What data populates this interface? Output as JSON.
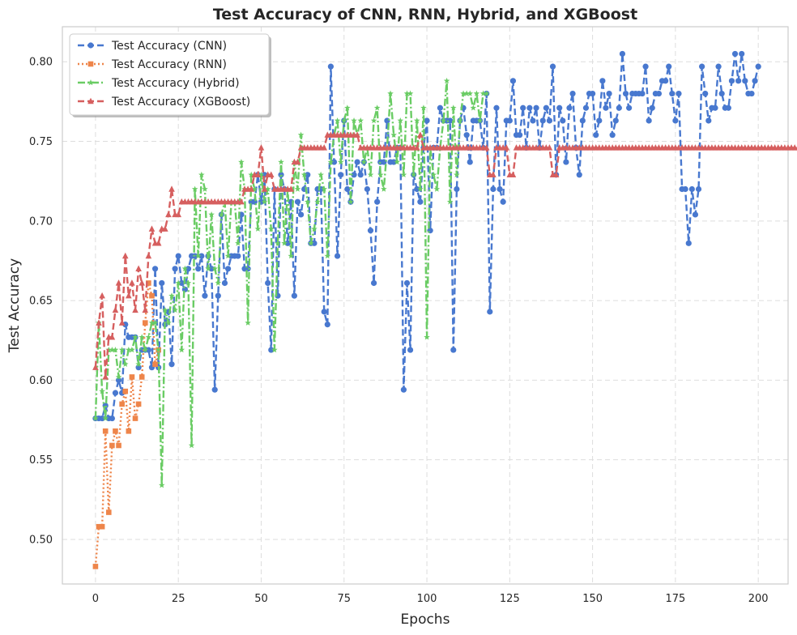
{
  "chart_data": {
    "type": "line",
    "title": "Test Accuracy of CNN, RNN, Hybrid, and XGBoost",
    "xlabel": "Epochs",
    "ylabel": "Test Accuracy",
    "xlim": [
      -10,
      209
    ],
    "ylim": [
      0.472,
      0.822
    ],
    "xticks": [
      0,
      25,
      50,
      75,
      100,
      125,
      150,
      175,
      200
    ],
    "xtick_labels": [
      "0",
      "25",
      "50",
      "75",
      "100",
      "125",
      "150",
      "175",
      "200"
    ],
    "yticks": [
      0.5,
      0.55,
      0.6,
      0.65,
      0.7,
      0.75,
      0.8
    ],
    "ytick_labels": [
      "0.50",
      "0.55",
      "0.60",
      "0.65",
      "0.70",
      "0.75",
      "0.80"
    ],
    "grid": true,
    "legend_position": "top-left",
    "series": [
      {
        "name": "Test Accuracy (CNN)",
        "color": "#4878cf",
        "line_style": "dashed",
        "marker": "circle",
        "x_start": 0,
        "values": [
          0.576,
          0.576,
          0.576,
          0.584,
          0.576,
          0.576,
          0.592,
          0.6,
          0.592,
          0.635,
          0.627,
          0.627,
          0.627,
          0.608,
          0.619,
          0.619,
          0.619,
          0.608,
          0.67,
          0.608,
          0.661,
          0.635,
          0.643,
          0.61,
          0.67,
          0.678,
          0.661,
          0.657,
          0.67,
          0.678,
          0.678,
          0.67,
          0.678,
          0.653,
          0.678,
          0.67,
          0.594,
          0.653,
          0.704,
          0.661,
          0.67,
          0.678,
          0.678,
          0.678,
          0.704,
          0.67,
          0.67,
          0.712,
          0.712,
          0.729,
          0.712,
          0.729,
          0.661,
          0.619,
          0.72,
          0.653,
          0.729,
          0.72,
          0.686,
          0.712,
          0.653,
          0.712,
          0.704,
          0.72,
          0.729,
          0.686,
          0.686,
          0.72,
          0.72,
          0.643,
          0.635,
          0.797,
          0.737,
          0.678,
          0.729,
          0.763,
          0.72,
          0.712,
          0.729,
          0.737,
          0.729,
          0.737,
          0.72,
          0.694,
          0.661,
          0.712,
          0.737,
          0.737,
          0.763,
          0.737,
          0.737,
          0.746,
          0.746,
          0.594,
          0.661,
          0.619,
          0.729,
          0.72,
          0.712,
          0.746,
          0.763,
          0.694,
          0.746,
          0.746,
          0.771,
          0.763,
          0.763,
          0.763,
          0.619,
          0.72,
          0.763,
          0.771,
          0.754,
          0.737,
          0.763,
          0.763,
          0.763,
          0.746,
          0.78,
          0.643,
          0.72,
          0.771,
          0.72,
          0.712,
          0.763,
          0.763,
          0.788,
          0.754,
          0.754,
          0.771,
          0.746,
          0.771,
          0.763,
          0.771,
          0.746,
          0.763,
          0.771,
          0.763,
          0.797,
          0.729,
          0.771,
          0.763,
          0.737,
          0.771,
          0.78,
          0.746,
          0.729,
          0.763,
          0.771,
          0.78,
          0.78,
          0.754,
          0.763,
          0.788,
          0.771,
          0.78,
          0.754,
          0.763,
          0.771,
          0.805,
          0.78,
          0.771,
          0.78,
          0.78,
          0.78,
          0.78,
          0.797,
          0.763,
          0.771,
          0.78,
          0.78,
          0.788,
          0.788,
          0.797,
          0.78,
          0.763,
          0.78,
          0.72,
          0.72,
          0.686,
          0.72,
          0.704,
          0.72,
          0.797,
          0.78,
          0.763,
          0.771,
          0.771,
          0.797,
          0.78,
          0.771,
          0.771,
          0.788,
          0.805,
          0.788,
          0.805,
          0.788,
          0.78,
          0.78,
          0.788,
          0.797
        ]
      },
      {
        "name": "Test Accuracy (RNN)",
        "color": "#ee854a",
        "line_style": "dotted",
        "marker": "square",
        "x_start": 0,
        "values": [
          0.483,
          0.508,
          0.508,
          0.568,
          0.517,
          0.559,
          0.568,
          0.559,
          0.585,
          0.593,
          0.568,
          0.602,
          0.576,
          0.585,
          0.602,
          0.636,
          0.661,
          0.653,
          0.61,
          0.619
        ]
      },
      {
        "name": "Test Accuracy (Hybrid)",
        "color": "#6acc64",
        "line_style": "dashdot",
        "marker": "star",
        "x_start": 0,
        "values": [
          0.576,
          0.636,
          0.593,
          0.576,
          0.619,
          0.619,
          0.619,
          0.602,
          0.619,
          0.61,
          0.619,
          0.619,
          0.627,
          0.61,
          0.627,
          0.619,
          0.627,
          0.636,
          0.636,
          0.619,
          0.534,
          0.644,
          0.636,
          0.653,
          0.644,
          0.661,
          0.619,
          0.67,
          0.661,
          0.559,
          0.72,
          0.678,
          0.729,
          0.72,
          0.67,
          0.704,
          0.67,
          0.661,
          0.704,
          0.712,
          0.678,
          0.712,
          0.712,
          0.686,
          0.737,
          0.72,
          0.636,
          0.729,
          0.72,
          0.695,
          0.729,
          0.712,
          0.72,
          0.695,
          0.619,
          0.686,
          0.737,
          0.686,
          0.72,
          0.678,
          0.737,
          0.72,
          0.754,
          0.729,
          0.712,
          0.686,
          0.695,
          0.712,
          0.729,
          0.72,
          0.678,
          0.737,
          0.754,
          0.763,
          0.737,
          0.763,
          0.771,
          0.712,
          0.763,
          0.754,
          0.763,
          0.737,
          0.746,
          0.729,
          0.763,
          0.771,
          0.729,
          0.72,
          0.746,
          0.78,
          0.754,
          0.737,
          0.763,
          0.729,
          0.78,
          0.78,
          0.729,
          0.763,
          0.72,
          0.771,
          0.627,
          0.746,
          0.729,
          0.72,
          0.746,
          0.763,
          0.788,
          0.712,
          0.771,
          0.729,
          0.763,
          0.78,
          0.78,
          0.78,
          0.771,
          0.78,
          0.763,
          0.78,
          0.78
        ]
      },
      {
        "name": "Test Accuracy (XGBoost)",
        "color": "#d65f5f",
        "line_style": "dashed",
        "marker": "triangle",
        "x_start": 0,
        "values": [
          0.608,
          0.636,
          0.653,
          0.602,
          0.627,
          0.627,
          0.644,
          0.661,
          0.636,
          0.678,
          0.653,
          0.661,
          0.644,
          0.67,
          0.661,
          0.644,
          0.678,
          0.695,
          0.686,
          0.686,
          0.695,
          0.695,
          0.704,
          0.72,
          0.704,
          0.704,
          0.712,
          0.712,
          0.712,
          0.712,
          0.712,
          0.712,
          0.712,
          0.712,
          0.712,
          0.712,
          0.712,
          0.712,
          0.712,
          0.712,
          0.712,
          0.712,
          0.712,
          0.712,
          0.712,
          0.72,
          0.72,
          0.72,
          0.729,
          0.729,
          0.746,
          0.72,
          0.729,
          0.729,
          0.72,
          0.72,
          0.72,
          0.72,
          0.72,
          0.72,
          0.737,
          0.737,
          0.746,
          0.746,
          0.746,
          0.746,
          0.746,
          0.746,
          0.746,
          0.746,
          0.754,
          0.754,
          0.754,
          0.754,
          0.754,
          0.754,
          0.754,
          0.754,
          0.754,
          0.754,
          0.746,
          0.746,
          0.746,
          0.746,
          0.746,
          0.746,
          0.746,
          0.746,
          0.746,
          0.746,
          0.746,
          0.746,
          0.746,
          0.746,
          0.746,
          0.746,
          0.746,
          0.746,
          0.754,
          0.746,
          0.746,
          0.746,
          0.746,
          0.746,
          0.746,
          0.746,
          0.746,
          0.746,
          0.746,
          0.746,
          0.746,
          0.746,
          0.746,
          0.746,
          0.746,
          0.746,
          0.746,
          0.746,
          0.746,
          0.729,
          0.729,
          0.746,
          0.746,
          0.746,
          0.746,
          0.729,
          0.729,
          0.746,
          0.746,
          0.746,
          0.746,
          0.746,
          0.746,
          0.746,
          0.746,
          0.746,
          0.746,
          0.746,
          0.729,
          0.729,
          0.746,
          0.746,
          0.746,
          0.746,
          0.746,
          0.746,
          0.746,
          0.746,
          0.746,
          0.746,
          0.746,
          0.746,
          0.746,
          0.746,
          0.746,
          0.746,
          0.746,
          0.746,
          0.746,
          0.746,
          0.746,
          0.746,
          0.746,
          0.746,
          0.746,
          0.746,
          0.746,
          0.746,
          0.746,
          0.746,
          0.746,
          0.746,
          0.746,
          0.746,
          0.746,
          0.746,
          0.746,
          0.746,
          0.746,
          0.746,
          0.746,
          0.746,
          0.746,
          0.746,
          0.746,
          0.746,
          0.746,
          0.746,
          0.746,
          0.746,
          0.746,
          0.746,
          0.746,
          0.746,
          0.746,
          0.746,
          0.746,
          0.746,
          0.746,
          0.746,
          0.746,
          0.746,
          0.746,
          0.746,
          0.746,
          0.746,
          0.746,
          0.746,
          0.746,
          0.746,
          0.746,
          0.746,
          0.746,
          0.746,
          0.746,
          0.746,
          0.746,
          0.746,
          0.746,
          0.746,
          0.746,
          0.746
        ]
      }
    ]
  }
}
